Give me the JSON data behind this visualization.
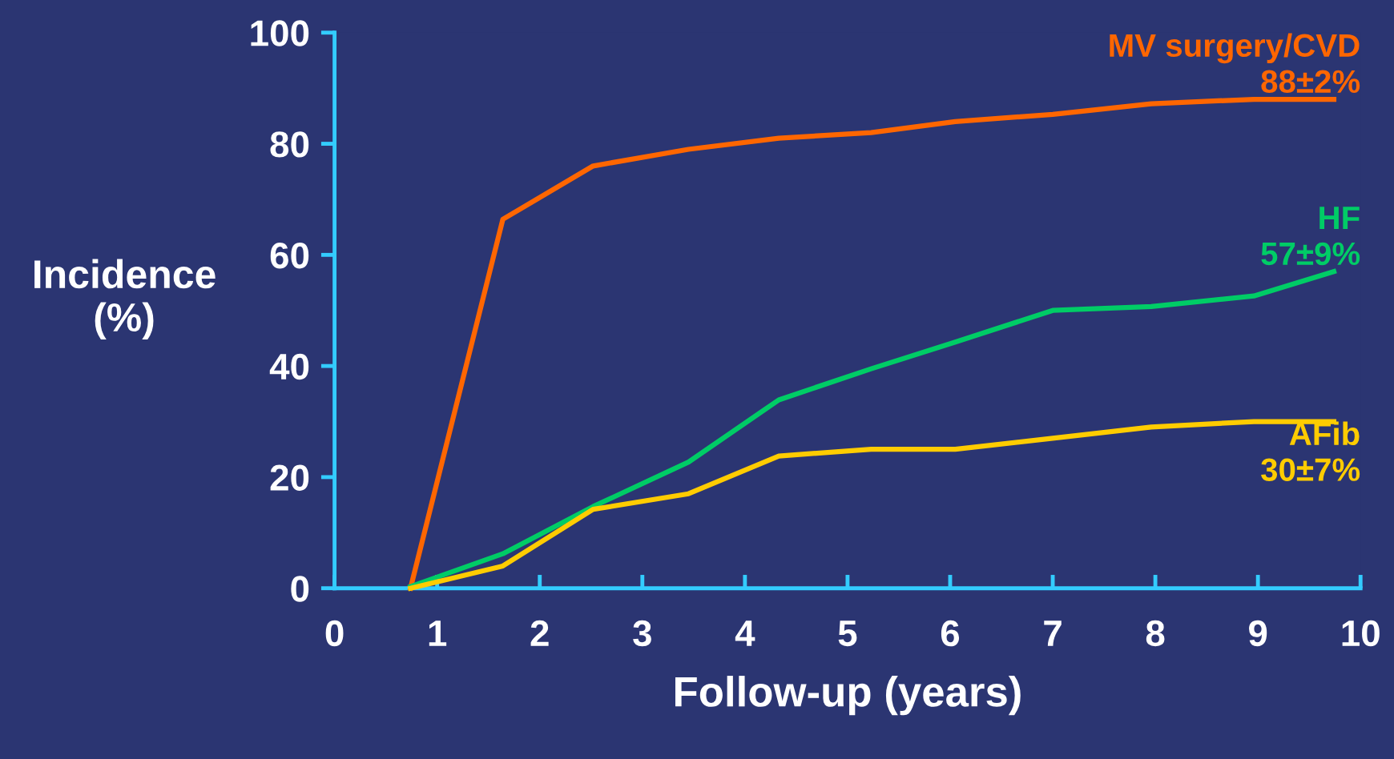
{
  "chart_data": {
    "type": "line",
    "xlabel": "Follow-up (years)",
    "ylabel": "Incidence\n(%)",
    "xlim": [
      0,
      10
    ],
    "ylim": [
      0,
      100
    ],
    "xticks": [
      0,
      1,
      2,
      3,
      4,
      5,
      6,
      7,
      8,
      9,
      10
    ],
    "yticks": [
      0,
      20,
      40,
      60,
      80,
      100
    ],
    "grid": false,
    "legend": false,
    "marker": "none",
    "line_style": "solid",
    "x": [
      0.74,
      1.64,
      2.52,
      3.45,
      4.33,
      5.23,
      6.05,
      7.0,
      7.96,
      8.96,
      9.74
    ],
    "series": [
      {
        "name": "MV surgery/CVD",
        "color": "#ff6600",
        "values": [
          0,
          66.4,
          76,
          79,
          81,
          82,
          84,
          85.3,
          87.2,
          88,
          88
        ]
      },
      {
        "name": "HF",
        "color": "#00cc66",
        "values": [
          0.3,
          6.2,
          14.7,
          22.7,
          33.9,
          39.5,
          44.3,
          50,
          50.7,
          52.6,
          57
        ]
      },
      {
        "name": "AFib",
        "color": "#ffcc00",
        "values": [
          0,
          4,
          14.2,
          17,
          23.8,
          25,
          25,
          27,
          29,
          30,
          30
        ]
      }
    ],
    "annotations": [
      "88±2%",
      "57±9%",
      "30±7%"
    ]
  }
}
